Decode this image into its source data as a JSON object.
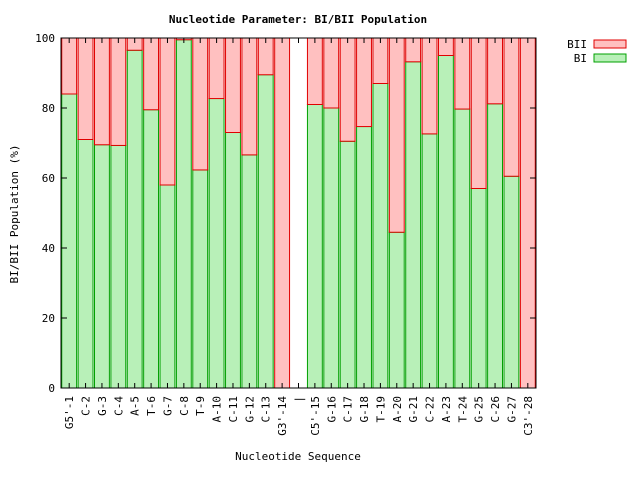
{
  "chart_data": {
    "type": "bar",
    "title": "Nucleotide Parameter: BI/BII Population",
    "xlabel": "Nucleotide Sequence",
    "ylabel": "BI/BII Population (%)",
    "ylim": [
      0,
      100
    ],
    "yticks": [
      0,
      20,
      40,
      60,
      80,
      100
    ],
    "stacked": true,
    "grid": false,
    "legend_position": "top-right",
    "categories": [
      "G5'-1",
      "C-2",
      "G-3",
      "C-4",
      "A-5",
      "T-6",
      "G-7",
      "C-8",
      "T-9",
      "A-10",
      "C-11",
      "G-12",
      "C-13",
      "G3'-14",
      "|",
      "C5'-15",
      "G-16",
      "C-17",
      "G-18",
      "T-19",
      "A-20",
      "G-21",
      "C-22",
      "A-23",
      "T-24",
      "G-25",
      "C-26",
      "G-27",
      "C3'-28"
    ],
    "series": [
      {
        "name": "BI",
        "color": "#b8f0b8",
        "stroke": "#00a000",
        "values": [
          84,
          71,
          69.5,
          69.3,
          96.5,
          79.5,
          58,
          99.5,
          62.3,
          82.7,
          73,
          66.6,
          89.5,
          0,
          null,
          81,
          80,
          70.5,
          74.7,
          87,
          44.5,
          93.2,
          72.6,
          95,
          79.7,
          57,
          81.2,
          60.5,
          0
        ]
      },
      {
        "name": "BII",
        "color": "#ffc0c0",
        "stroke": "#e00000",
        "values": [
          16,
          29,
          30.5,
          30.7,
          3.5,
          20.5,
          42,
          0.5,
          37.7,
          17.3,
          27,
          33.4,
          10.5,
          100,
          null,
          19,
          20,
          29.5,
          25.3,
          13,
          55.5,
          6.8,
          27.4,
          5,
          20.3,
          43,
          18.8,
          39.5,
          100
        ]
      }
    ]
  }
}
